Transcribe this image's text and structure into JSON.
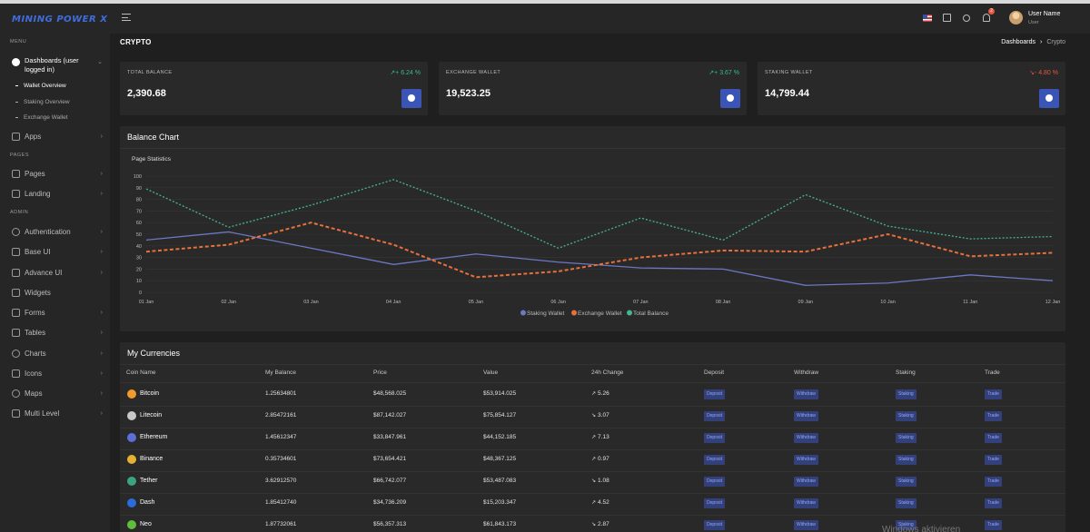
{
  "app": {
    "logo": "MINING POWER X"
  },
  "sidebar": {
    "section_menu": "MENU",
    "dashboards_label": "Dashboards (user logged in)",
    "sub_items": [
      {
        "label": "Wallet Overview"
      },
      {
        "label": "Staking Overview"
      },
      {
        "label": "Exchange Wallet"
      }
    ],
    "apps_label": "Apps",
    "section_pages": "PAGES",
    "pages_items": [
      {
        "label": "Pages"
      },
      {
        "label": "Landing"
      }
    ],
    "section_admin": "ADMIN",
    "admin_items": [
      {
        "label": "Authentication"
      },
      {
        "label": "Base UI"
      },
      {
        "label": "Advance UI"
      },
      {
        "label": "Widgets"
      },
      {
        "label": "Forms"
      },
      {
        "label": "Tables"
      },
      {
        "label": "Charts"
      },
      {
        "label": "Icons"
      },
      {
        "label": "Maps"
      },
      {
        "label": "Multi Level"
      }
    ]
  },
  "header": {
    "notification_count": "2",
    "user_name": "User Name",
    "user_role": "User"
  },
  "page": {
    "title": "CRYPTO",
    "breadcrumb": [
      "Dashboards",
      "Crypto"
    ]
  },
  "stats": [
    {
      "label": "TOTAL BALANCE",
      "change": "↗+ 6.24 %",
      "direction": "up",
      "value": "2,390.68"
    },
    {
      "label": "EXCHANGE WALLET",
      "change": "↗+ 3.67 %",
      "direction": "up",
      "value": "19,523.25"
    },
    {
      "label": "STAKING WALLET",
      "change": "↘- 4.80 %",
      "direction": "down",
      "value": "14,799.44"
    }
  ],
  "balance_chart": {
    "card_title": "Balance Chart",
    "subtitle": "Page Statistics"
  },
  "chart_data": {
    "type": "line",
    "title": "Page Statistics",
    "categories": [
      "01 Jan",
      "02 Jan",
      "03 Jan",
      "04 Jan",
      "05 Jan",
      "06 Jan",
      "07 Jan",
      "08 Jan",
      "09 Jan",
      "10 Jan",
      "11 Jan",
      "12 Jan"
    ],
    "ylim": [
      0,
      100
    ],
    "yticks": [
      0,
      10,
      20,
      30,
      40,
      50,
      60,
      70,
      80,
      90,
      100
    ],
    "legend_position": "bottom",
    "grid": true,
    "series": [
      {
        "name": "Staking Wallet",
        "color": "#6b78c4",
        "dash": "solid",
        "values": [
          45,
          52,
          38,
          24,
          33,
          26,
          21,
          20,
          6,
          8,
          15,
          10
        ]
      },
      {
        "name": "Exchange Wallet",
        "color": "#e8703a",
        "dash": "dashed",
        "values": [
          35,
          41,
          60,
          41,
          13,
          18,
          30,
          36,
          35,
          50,
          31,
          34
        ]
      },
      {
        "name": "Total Balance",
        "color": "#45b58f",
        "dash": "dotted",
        "values": [
          89,
          56,
          75,
          97,
          70,
          38,
          64,
          45,
          84,
          57,
          46,
          48
        ]
      }
    ]
  },
  "currencies": {
    "card_title": "My Currencies",
    "headers": [
      "Coin Name",
      "My Balance",
      "Price",
      "Value",
      "24h Change",
      "Deposit",
      "Withdraw",
      "Staking",
      "Trade"
    ],
    "rows": [
      {
        "name": "Bitcoin",
        "icon_color": "#f39a2c",
        "balance": "1.25634801",
        "price": "$48,568.025",
        "value": "$53,914.025",
        "change": "5.26",
        "dir": "up",
        "arrow": "↗",
        "deposit": "Deposit",
        "withdraw": "Withdraw",
        "staking": "Staking",
        "trade": "Trade"
      },
      {
        "name": "Litecoin",
        "icon_color": "#c8c8c8",
        "balance": "2.85472161",
        "price": "$87,142.027",
        "value": "$75,854.127",
        "change": "3.07",
        "dir": "down",
        "arrow": "↘",
        "deposit": "Deposit",
        "withdraw": "Withdraw",
        "staking": "Staking",
        "trade": "Trade"
      },
      {
        "name": "Ethereum",
        "icon_color": "#5b6fd6",
        "balance": "1.45612347",
        "price": "$33,847.961",
        "value": "$44,152.185",
        "change": "7.13",
        "dir": "up",
        "arrow": "↗",
        "deposit": "Deposit",
        "withdraw": "Withdraw",
        "staking": "Staking",
        "trade": "Trade"
      },
      {
        "name": "Binance",
        "icon_color": "#e3b233",
        "balance": "0.35734601",
        "price": "$73,654.421",
        "value": "$48,367.125",
        "change": "0.97",
        "dir": "up",
        "arrow": "↗",
        "deposit": "Deposit",
        "withdraw": "Withdraw",
        "staking": "Staking",
        "trade": "Trade"
      },
      {
        "name": "Tether",
        "icon_color": "#3aa47e",
        "balance": "3.62912570",
        "price": "$66,742.077",
        "value": "$53,487.083",
        "change": "1.08",
        "dir": "down",
        "arrow": "↘",
        "deposit": "Deposit",
        "withdraw": "Withdraw",
        "staking": "Staking",
        "trade": "Trade"
      },
      {
        "name": "Dash",
        "icon_color": "#2a6dd8",
        "balance": "1.85412740",
        "price": "$34,736.209",
        "value": "$15,203.347",
        "change": "4.52",
        "dir": "up",
        "arrow": "↗",
        "deposit": "Deposit",
        "withdraw": "Withdraw",
        "staking": "Staking",
        "trade": "Trade"
      },
      {
        "name": "Neo",
        "icon_color": "#5fbf3a",
        "balance": "1.87732061",
        "price": "$56,357.313",
        "value": "$61,843.173",
        "change": "2.87",
        "dir": "down",
        "arrow": "↘",
        "deposit": "Deposit",
        "withdraw": "Withdraw",
        "staking": "Staking",
        "trade": "Trade"
      }
    ]
  },
  "watermark": "Windows aktivieren"
}
